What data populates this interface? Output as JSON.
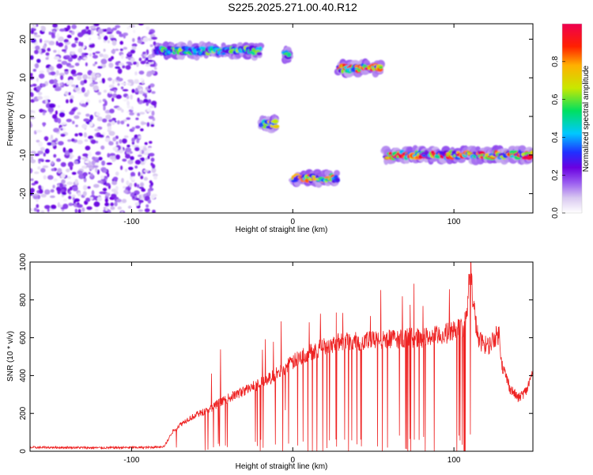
{
  "figure": {
    "title": "S225.2025.271.00.40.R12"
  },
  "colors": {
    "snr_line": "#ee2222",
    "axis": "#000000"
  },
  "chart_data": [
    {
      "type": "heatmap",
      "title": "S225.2025.271.00.40.R12",
      "xlabel": "Height of straight line (km)",
      "ylabel": "Frequency (Hz)",
      "xlim": [
        -163,
        149
      ],
      "ylim": [
        -25,
        24
      ],
      "x_ticks": [
        -100,
        0,
        100
      ],
      "y_ticks": [
        -20,
        -10,
        0,
        10,
        20
      ],
      "colorbar": {
        "label": "Normalized spectral amplitude",
        "range": [
          0,
          1
        ],
        "ticks": [
          "0.0",
          "0.2",
          "0.4",
          "0.6",
          "0.8"
        ],
        "colormap": [
          "#ffffff",
          "#d8c8f0",
          "#9a5cf0",
          "#6a00e0",
          "#2030ff",
          "#00c8ff",
          "#00e060",
          "#c8e800",
          "#ffb000",
          "#ff2000",
          "#ee0050"
        ]
      },
      "features": [
        {
          "x_range": [
            -163,
            -85
          ],
          "freq_range": [
            -25,
            24
          ],
          "level": 0.3,
          "description": "noise"
        },
        {
          "x_range": [
            -85,
            -20
          ],
          "freq": 17,
          "level": 0.45
        },
        {
          "x_range": [
            -20,
            -10
          ],
          "freq": -2,
          "level": 0.55
        },
        {
          "x_range": [
            -5,
            -2
          ],
          "freq": 16,
          "level": 0.4
        },
        {
          "x_range": [
            0,
            28
          ],
          "freq": -16,
          "level": 0.65
        },
        {
          "x_range": [
            28,
            55
          ],
          "freq": 12.5,
          "level": 0.85
        },
        {
          "x_range": [
            57,
            149
          ],
          "freq": -10,
          "level": 0.85
        }
      ]
    },
    {
      "type": "line",
      "xlabel": "Height of straight line (km)",
      "ylabel": "SNR (10 * v/v)",
      "xlim": [
        -163,
        149
      ],
      "ylim": [
        0,
        1000
      ],
      "x_ticks": [
        -100,
        0,
        100
      ],
      "y_ticks": [
        0,
        200,
        400,
        600,
        800,
        1000
      ],
      "series": [
        {
          "x": [
            -163,
            -140,
            -120,
            -100,
            -90,
            -80,
            -78,
            -75,
            -70,
            -65,
            -60,
            -55,
            -50,
            -45,
            -40,
            -35,
            -30,
            -25,
            -20,
            -15,
            -10,
            -5,
            0,
            5,
            10,
            15,
            20,
            25,
            30,
            40,
            50,
            60,
            70,
            80,
            90,
            95,
            100,
            105,
            108,
            110,
            112,
            115,
            120,
            122,
            125,
            128,
            130,
            135,
            140,
            145,
            149
          ],
          "y": [
            20,
            20,
            18,
            20,
            20,
            25,
            50,
            100,
            140,
            170,
            190,
            210,
            230,
            260,
            280,
            300,
            320,
            340,
            360,
            380,
            410,
            440,
            470,
            500,
            520,
            540,
            560,
            570,
            580,
            580,
            585,
            590,
            600,
            600,
            610,
            620,
            640,
            650,
            700,
            1000,
            780,
            590,
            560,
            560,
            600,
            620,
            450,
            330,
            280,
            320,
            420
          ]
        }
      ]
    }
  ]
}
